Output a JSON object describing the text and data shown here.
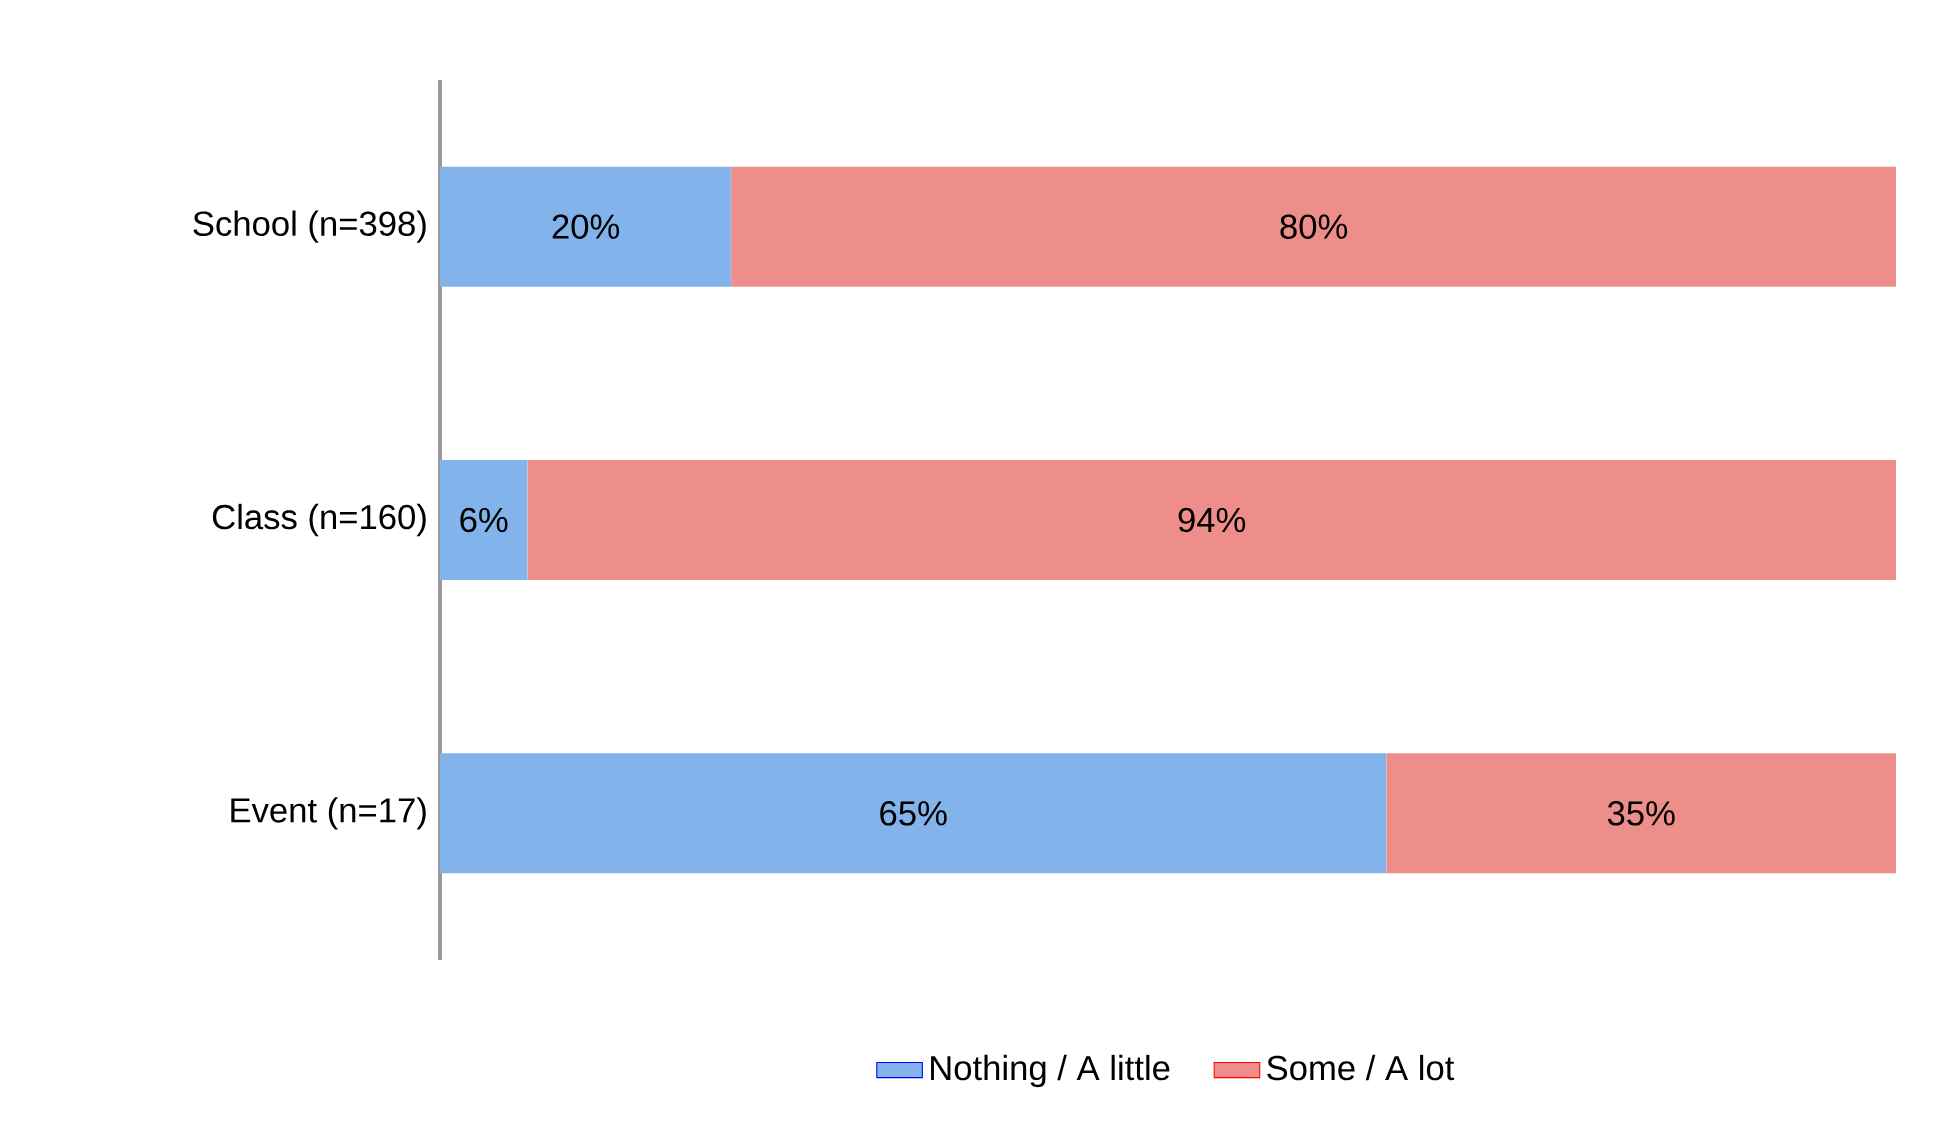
{
  "chart_data": {
    "type": "bar",
    "orientation": "horizontal",
    "stacked": true,
    "xlim": [
      0,
      100
    ],
    "categories": [
      "School (n=398)",
      "Class (n=160)",
      "Event (n=17)"
    ],
    "tick_labels": "y",
    "legend": "bottom",
    "series": [
      {
        "name": "Nothing / A little",
        "color": "#82b3ea",
        "values": [
          20,
          6,
          65
        ],
        "value_labels": [
          "20%",
          "6%",
          "65%"
        ]
      },
      {
        "name": "Some / A lot",
        "color": "#ee8e8a",
        "values": [
          80,
          94,
          35
        ],
        "value_labels": [
          "80%",
          "94%",
          "35%"
        ]
      }
    ]
  }
}
